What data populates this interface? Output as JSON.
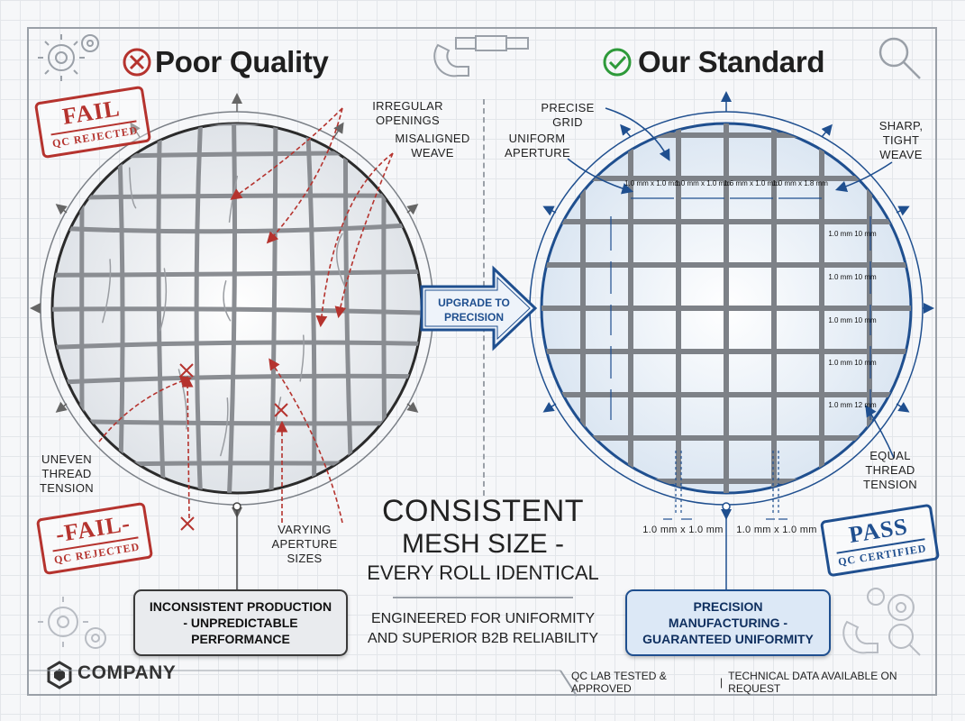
{
  "left_panel": {
    "heading": "Poor Quality",
    "stamp_top": {
      "big": "FAIL",
      "small": "QC REJECTED"
    },
    "stamp_bottom": {
      "big": "-FAIL-",
      "small": "QC REJECTED"
    },
    "annotations": {
      "irregular_openings": "IRREGULAR OPENINGS",
      "misaligned_weave": "MISALIGNED WEAVE",
      "uneven_thread_tension": "UNEVEN THREAD TENSION",
      "varying_aperture_sizes": "VARYING APERTURE SIZES"
    },
    "pill": "INCONSISTENT PRODUCTION - UNPREDICTABLE PERFORMANCE"
  },
  "right_panel": {
    "heading": "Our Standard",
    "stamp": {
      "big": "PASS",
      "small": "QC CERTIFIED"
    },
    "annotations": {
      "precise_grid": "PRECISE GRID",
      "uniform_aperture": "UNIFORM APERTURE",
      "sharp_tight_weave": "SHARP, TIGHT WEAVE",
      "equal_thread_tension": "EQUAL THREAD TENSION"
    },
    "top_measurements": [
      "1.0 mm x 1.0 mm",
      "1.0 mm x 1.0 mm",
      "1.6 mm x 1.0 mm",
      "1.0 mm x 1.8 mm"
    ],
    "side_measurements": [
      "1.0 mm 10 mm",
      "1.0 mm 10 mm",
      "1.0 mm 10 mm",
      "1.0 mm 10 mm",
      "1.0 mm 12 mm"
    ],
    "bottom_measurements": [
      "1.0 mm x 1.0 mm",
      "1.0 mm x 1.0 mm"
    ],
    "pill": "PRECISION MANUFACTURING - GUARANTEED UNIFORMITY"
  },
  "center": {
    "arrow_label": "UPGRADE TO PRECISION",
    "title_line1": "CONSISTENT",
    "title_line2": "MESH SIZE -",
    "title_line3": "EVERY ROLL IDENTICAL",
    "subtitle": "ENGINEERED FOR UNIFORMITY AND SUPERIOR B2B RELIABILITY"
  },
  "footer": {
    "company": "COMPANY",
    "tested": "QC LAB TESTED & APPROVED",
    "separator": "|",
    "technical": "TECHNICAL DATA AVAILABLE ON REQUEST"
  },
  "colors": {
    "fail_red": "#b5332e",
    "pass_blue": "#1f4f8f",
    "check_green": "#2e9a3a",
    "mesh_gray": "#8a8d92"
  },
  "icons": [
    "x-circle-icon",
    "check-circle-icon",
    "gear-icon",
    "micrometer-icon",
    "magnifier-icon",
    "company-logo-icon"
  ]
}
